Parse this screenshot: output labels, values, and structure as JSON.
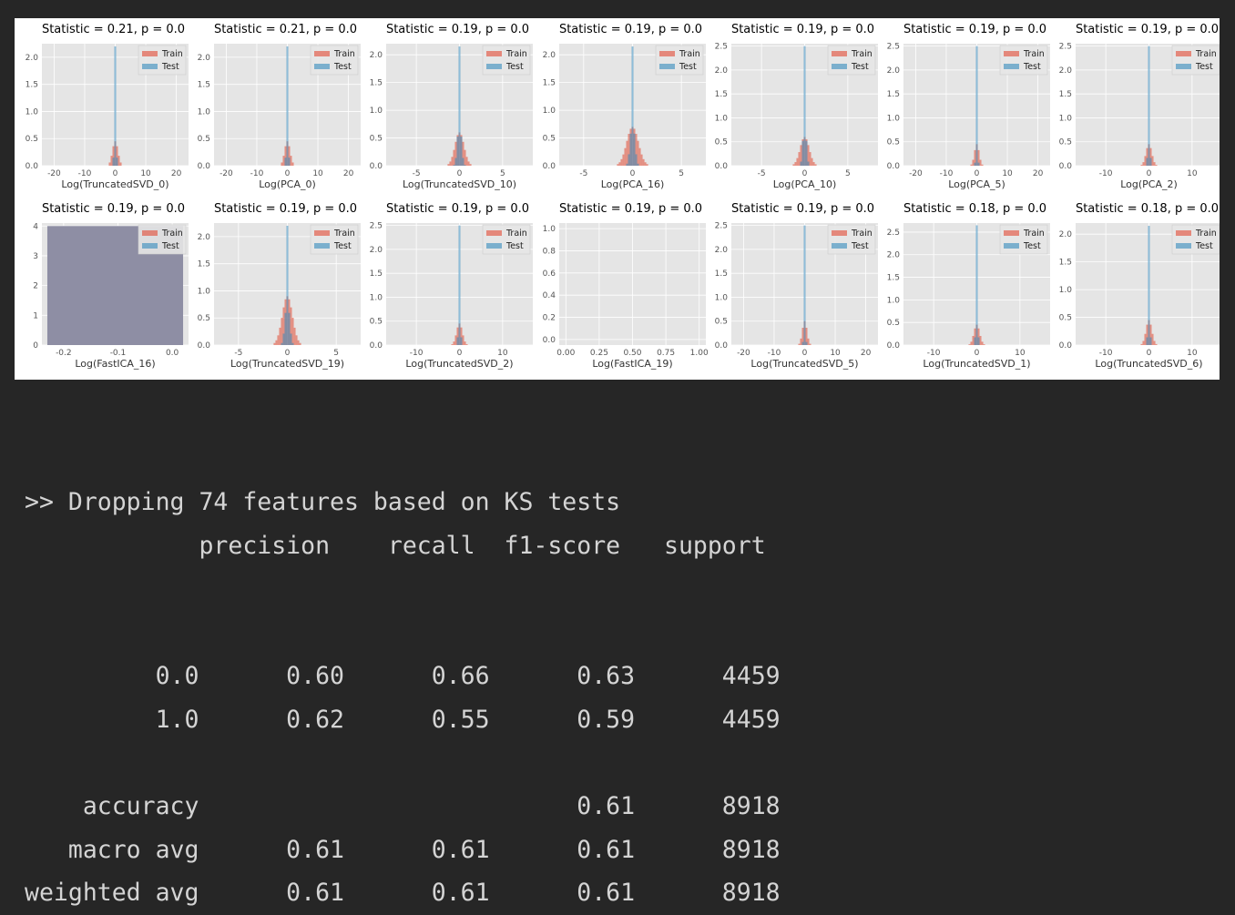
{
  "chart_data": [
    {
      "type": "histogram",
      "title": "Statistic = 0.21, p = 0.0",
      "xlabel": "Log(TruncatedSVD_0)",
      "xlim": [
        -24,
        24
      ],
      "ylim": [
        0,
        2.25
      ],
      "xticks": [
        -20,
        -10,
        0,
        10,
        20
      ],
      "xtick_labels": [
        "-20",
        "-10",
        "0",
        "10",
        "20"
      ],
      "yticks": [
        0,
        0.5,
        1.0,
        1.5,
        2.0
      ],
      "ytick_labels": [
        "0.0",
        "0.5",
        "1.0",
        "1.5",
        "2.0"
      ],
      "center": 0,
      "test_peak": 2.2,
      "train_peak": 0.45,
      "test_spread": 0.5,
      "train_spread": 1.2,
      "legend": [
        "Train",
        "Test"
      ]
    },
    {
      "type": "histogram",
      "title": "Statistic = 0.21, p = 0.0",
      "xlabel": "Log(PCA_0)",
      "xlim": [
        -24,
        24
      ],
      "ylim": [
        0,
        2.25
      ],
      "xticks": [
        -20,
        -10,
        0,
        10,
        20
      ],
      "xtick_labels": [
        "-20",
        "-10",
        "0",
        "10",
        "20"
      ],
      "yticks": [
        0,
        0.5,
        1.0,
        1.5,
        2.0
      ],
      "ytick_labels": [
        "0.0",
        "0.5",
        "1.0",
        "1.5",
        "2.0"
      ],
      "center": 0,
      "test_peak": 2.2,
      "train_peak": 0.45,
      "test_spread": 0.5,
      "train_spread": 1.2,
      "legend": [
        "Train",
        "Test"
      ]
    },
    {
      "type": "histogram",
      "title": "Statistic = 0.19, p = 0.0",
      "xlabel": "Log(TruncatedSVD_10)",
      "xlim": [
        -8.5,
        8.5
      ],
      "ylim": [
        0,
        2.2
      ],
      "xticks": [
        -5,
        0,
        5
      ],
      "xtick_labels": [
        "-5",
        "0",
        "5"
      ],
      "yticks": [
        0,
        0.5,
        1.0,
        1.5,
        2.0
      ],
      "ytick_labels": [
        "0.0",
        "0.5",
        "1.0",
        "1.5",
        "2.0"
      ],
      "center": 0,
      "test_peak": 2.15,
      "train_peak": 0.6,
      "test_spread": 0.35,
      "train_spread": 0.7,
      "legend": [
        "Train",
        "Test"
      ]
    },
    {
      "type": "histogram",
      "title": "Statistic = 0.19, p = 0.0",
      "xlabel": "Log(PCA_16)",
      "xlim": [
        -7.5,
        7.5
      ],
      "ylim": [
        0,
        2.2
      ],
      "xticks": [
        -5,
        0,
        5
      ],
      "xtick_labels": [
        "-5",
        "0",
        "5"
      ],
      "yticks": [
        0,
        0.5,
        1.0,
        1.5,
        2.0
      ],
      "ytick_labels": [
        "0.0",
        "0.5",
        "1.0",
        "1.5",
        "2.0"
      ],
      "center": 0,
      "test_peak": 2.15,
      "train_peak": 0.7,
      "test_spread": 0.35,
      "train_spread": 0.8,
      "legend": [
        "Train",
        "Test"
      ]
    },
    {
      "type": "histogram",
      "title": "Statistic = 0.19, p = 0.0",
      "xlabel": "Log(PCA_10)",
      "xlim": [
        -8.5,
        8.5
      ],
      "ylim": [
        0,
        2.55
      ],
      "xticks": [
        -5,
        0,
        5
      ],
      "xtick_labels": [
        "-5",
        "0",
        "5"
      ],
      "yticks": [
        0,
        0.5,
        1.0,
        1.5,
        2.0,
        2.5
      ],
      "ytick_labels": [
        "0.0",
        "0.5",
        "1.0",
        "1.5",
        "2.0",
        "2.5"
      ],
      "center": 0,
      "test_peak": 2.5,
      "train_peak": 0.6,
      "test_spread": 0.3,
      "train_spread": 0.7,
      "legend": [
        "Train",
        "Test"
      ]
    },
    {
      "type": "histogram",
      "title": "Statistic = 0.19, p = 0.0",
      "xlabel": "Log(PCA_5)",
      "xlim": [
        -24,
        24
      ],
      "ylim": [
        0,
        2.55
      ],
      "xticks": [
        -20,
        -10,
        0,
        10,
        20
      ],
      "xtick_labels": [
        "-20",
        "-10",
        "0",
        "10",
        "20"
      ],
      "yticks": [
        0,
        0.5,
        1.0,
        1.5,
        2.0,
        2.5
      ],
      "ytick_labels": [
        "0.0",
        "0.5",
        "1.0",
        "1.5",
        "2.0",
        "2.5"
      ],
      "center": 0,
      "test_peak": 2.5,
      "train_peak": 0.45,
      "test_spread": 0.4,
      "train_spread": 1.0,
      "legend": [
        "Train",
        "Test"
      ]
    },
    {
      "type": "histogram",
      "title": "Statistic = 0.19, p = 0.0",
      "xlabel": "Log(PCA_2)",
      "xlim": [
        -17,
        17
      ],
      "ylim": [
        0,
        2.55
      ],
      "xticks": [
        -10,
        0,
        10
      ],
      "xtick_labels": [
        "-10",
        "0",
        "10"
      ],
      "yticks": [
        0,
        0.5,
        1.0,
        1.5,
        2.0,
        2.5
      ],
      "ytick_labels": [
        "0.0",
        "0.5",
        "1.0",
        "1.5",
        "2.0",
        "2.5"
      ],
      "center": 0,
      "test_peak": 2.5,
      "train_peak": 0.45,
      "test_spread": 0.35,
      "train_spread": 0.9,
      "legend": [
        "Train",
        "Test"
      ]
    },
    {
      "type": "histogram",
      "title": "Statistic = 0.19, p = 0.0",
      "xlabel": "Log(FastICA_16)",
      "xlim": [
        -0.24,
        0.03
      ],
      "ylim": [
        0,
        4.1
      ],
      "xticks": [
        -0.2,
        -0.1,
        0.0
      ],
      "xtick_labels": [
        "-0.2",
        "-0.1",
        "0.0"
      ],
      "yticks": [
        0,
        1,
        2,
        3,
        4
      ],
      "ytick_labels": [
        "0",
        "1",
        "2",
        "3",
        "4"
      ],
      "center": 0,
      "fill_range": [
        -0.23,
        0.02
      ],
      "fill_height": 4.0,
      "legend": [
        "Train",
        "Test"
      ]
    },
    {
      "type": "histogram",
      "title": "Statistic = 0.19, p = 0.0",
      "xlabel": "Log(TruncatedSVD_19)",
      "xlim": [
        -7.5,
        7.5
      ],
      "ylim": [
        0,
        2.25
      ],
      "xticks": [
        -5,
        0,
        5
      ],
      "xtick_labels": [
        "-5",
        "0",
        "5"
      ],
      "yticks": [
        0,
        0.5,
        1.0,
        1.5,
        2.0
      ],
      "ytick_labels": [
        "0.0",
        "0.5",
        "1.0",
        "1.5",
        "2.0"
      ],
      "center": 0,
      "test_peak": 2.2,
      "train_peak": 0.9,
      "test_spread": 0.35,
      "train_spread": 0.7,
      "legend": [
        "Train",
        "Test"
      ]
    },
    {
      "type": "histogram",
      "title": "Statistic = 0.19, p = 0.0",
      "xlabel": "Log(TruncatedSVD_2)",
      "xlim": [
        -17,
        17
      ],
      "ylim": [
        0,
        2.55
      ],
      "xticks": [
        -10,
        0,
        10
      ],
      "xtick_labels": [
        "-10",
        "0",
        "10"
      ],
      "yticks": [
        0,
        0.5,
        1.0,
        1.5,
        2.0,
        2.5
      ],
      "ytick_labels": [
        "0.0",
        "0.5",
        "1.0",
        "1.5",
        "2.0",
        "2.5"
      ],
      "center": 0,
      "test_peak": 2.5,
      "train_peak": 0.45,
      "test_spread": 0.35,
      "train_spread": 0.9,
      "legend": [
        "Train",
        "Test"
      ]
    },
    {
      "type": "histogram",
      "title": "Statistic = 0.19, p = 0.0",
      "xlabel": "Log(FastICA_19)",
      "xlim": [
        -0.05,
        1.05
      ],
      "ylim": [
        -0.05,
        1.05
      ],
      "xticks": [
        0,
        0.25,
        0.5,
        0.75,
        1.0
      ],
      "xtick_labels": [
        "0.00",
        "0.25",
        "0.50",
        "0.75",
        "1.00"
      ],
      "yticks": [
        0,
        0.2,
        0.4,
        0.6,
        0.8,
        1.0
      ],
      "ytick_labels": [
        "0.0",
        "0.2",
        "0.4",
        "0.6",
        "0.8",
        "1.0"
      ],
      "empty": true
    },
    {
      "type": "histogram",
      "title": "Statistic = 0.19, p = 0.0",
      "xlabel": "Log(TruncatedSVD_5)",
      "xlim": [
        -24,
        24
      ],
      "ylim": [
        0,
        2.55
      ],
      "xticks": [
        -20,
        -10,
        0,
        10,
        20
      ],
      "xtick_labels": [
        "-20",
        "-10",
        "0",
        "10",
        "20"
      ],
      "yticks": [
        0,
        0.5,
        1.0,
        1.5,
        2.0,
        2.5
      ],
      "ytick_labels": [
        "0.0",
        "0.5",
        "1.0",
        "1.5",
        "2.0",
        "2.5"
      ],
      "center": 0,
      "test_peak": 2.5,
      "train_peak": 0.5,
      "test_spread": 0.4,
      "train_spread": 1.0,
      "legend": [
        "Train",
        "Test"
      ]
    },
    {
      "type": "histogram",
      "title": "Statistic = 0.18, p = 0.0",
      "xlabel": "Log(TruncatedSVD_1)",
      "xlim": [
        -17,
        17
      ],
      "ylim": [
        0,
        2.7
      ],
      "xticks": [
        -10,
        0,
        10
      ],
      "xtick_labels": [
        "-10",
        "0",
        "10"
      ],
      "yticks": [
        0,
        0.5,
        1.0,
        1.5,
        2.0,
        2.5
      ],
      "ytick_labels": [
        "0.0",
        "0.5",
        "1.0",
        "1.5",
        "2.0",
        "2.5"
      ],
      "center": 0,
      "test_peak": 2.65,
      "train_peak": 0.45,
      "test_spread": 0.35,
      "train_spread": 0.9,
      "legend": [
        "Train",
        "Test"
      ]
    },
    {
      "type": "histogram",
      "title": "Statistic = 0.18, p = 0.0",
      "xlabel": "Log(TruncatedSVD_6)",
      "xlim": [
        -17,
        17
      ],
      "ylim": [
        0,
        2.2
      ],
      "xticks": [
        -10,
        0,
        10
      ],
      "xtick_labels": [
        "-10",
        "0",
        "10"
      ],
      "yticks": [
        0,
        0.5,
        1.0,
        1.5,
        2.0
      ],
      "ytick_labels": [
        "0.0",
        "0.5",
        "1.0",
        "1.5",
        "2.0"
      ],
      "center": 0,
      "test_peak": 2.15,
      "train_peak": 0.45,
      "test_spread": 0.35,
      "train_spread": 0.9,
      "legend": [
        "Train",
        "Test"
      ]
    }
  ],
  "colors": {
    "train": "#e24a33",
    "test": "#348abd",
    "panel": "#e5e5e5",
    "grid": "#ffffff",
    "fastica_fill": "#8e8ea4"
  },
  "output": {
    "drop_message": ">> Dropping 74 features based on KS tests",
    "report_header": [
      "precision",
      "recall",
      "f1-score",
      "support"
    ],
    "rows": [
      {
        "label": "0.0",
        "precision": "0.60",
        "recall": "0.66",
        "f1": "0.63",
        "support": "4459"
      },
      {
        "label": "1.0",
        "precision": "0.62",
        "recall": "0.55",
        "f1": "0.59",
        "support": "4459"
      }
    ],
    "summary": [
      {
        "label": "accuracy",
        "precision": "",
        "recall": "",
        "f1": "0.61",
        "support": "8918"
      },
      {
        "label": "macro avg",
        "precision": "0.61",
        "recall": "0.61",
        "f1": "0.61",
        "support": "8918"
      },
      {
        "label": "weighted avg",
        "precision": "0.61",
        "recall": "0.61",
        "f1": "0.61",
        "support": "8918"
      }
    ]
  }
}
